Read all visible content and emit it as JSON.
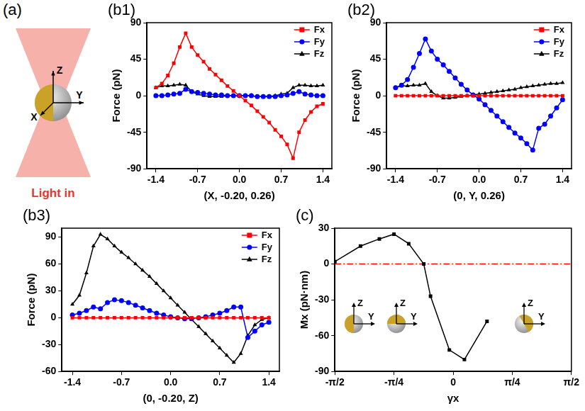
{
  "panel_a": {
    "panel": "(a)",
    "axes": [
      "X",
      "Y",
      "Z"
    ],
    "caption": "Light in"
  },
  "chart_data": [
    {
      "panel": "(b1)",
      "type": "line",
      "x_label": "(X, -0.20, 0.26)",
      "y_label": "Force (pN)",
      "x": [
        -1.4,
        -1.3,
        -1.2,
        -1.1,
        -1.0,
        -0.9,
        -0.8,
        -0.7,
        -0.6,
        -0.5,
        -0.4,
        -0.3,
        -0.2,
        -0.1,
        0,
        0.1,
        0.2,
        0.3,
        0.4,
        0.5,
        0.6,
        0.7,
        0.8,
        0.9,
        1.0,
        1.1,
        1.2,
        1.3,
        1.4
      ],
      "xlim": [
        -1.55,
        1.55
      ],
      "xticks": [
        -1.4,
        -0.7,
        {
          "value": 0,
          "label": "0.0"
        },
        0.7,
        1.4
      ],
      "ylim": [
        -90,
        90
      ],
      "yticks": [
        -90,
        -45,
        0,
        45,
        90
      ],
      "grid": false,
      "legend": "top right",
      "series": [
        {
          "name": "Fx",
          "color": "#ff0000",
          "marker": "square",
          "line_style": "solid",
          "values": [
            10,
            15,
            25,
            40,
            60,
            77,
            60,
            50,
            42,
            33,
            26,
            19,
            12,
            6,
            0,
            -6,
            -12,
            -19,
            -26,
            -33,
            -42,
            -50,
            -60,
            -77,
            -45,
            -30,
            -20,
            -13,
            -10
          ]
        },
        {
          "name": "Fy",
          "color": "#0000ff",
          "marker": "circle",
          "line_style": "solid",
          "values": [
            0,
            0,
            1,
            2,
            3,
            8,
            5,
            4,
            3,
            2,
            1,
            1,
            0,
            0,
            0,
            0,
            0,
            -1,
            -1,
            -1,
            -1,
            0,
            1,
            3,
            5,
            2,
            1,
            0,
            0
          ]
        },
        {
          "name": "Fz",
          "color": "#000000",
          "marker": "triangle",
          "line_style": "solid",
          "values": [
            10,
            12,
            12,
            13,
            14,
            13,
            5,
            2,
            0,
            -1,
            -1,
            -1,
            0,
            0,
            0,
            0,
            0,
            -1,
            -1,
            -1,
            0,
            2,
            3,
            10,
            13,
            13,
            12,
            12,
            13
          ]
        }
      ]
    },
    {
      "panel": "(b2)",
      "type": "line",
      "x_label": "(0, Y, 0.26)",
      "y_label": "Force (pN)",
      "x": [
        -1.4,
        -1.3,
        -1.2,
        -1.1,
        -1.0,
        -0.9,
        -0.8,
        -0.7,
        -0.6,
        -0.5,
        -0.4,
        -0.3,
        -0.2,
        -0.1,
        0,
        0.1,
        0.2,
        0.3,
        0.4,
        0.5,
        0.6,
        0.7,
        0.8,
        0.9,
        1.0,
        1.1,
        1.2,
        1.3,
        1.4
      ],
      "xlim": [
        -1.55,
        1.55
      ],
      "xticks": [
        -1.4,
        -0.7,
        {
          "value": 0,
          "label": "0.0"
        },
        0.7,
        1.4
      ],
      "ylim": [
        -90,
        90
      ],
      "yticks": [
        -90,
        -45,
        0,
        45,
        90
      ],
      "grid": false,
      "legend": "top right",
      "series": [
        {
          "name": "Fx",
          "color": "#ff0000",
          "marker": "square",
          "line_style": "solid",
          "values": [
            0,
            0,
            0,
            0,
            0,
            0,
            0,
            0,
            0,
            0,
            0,
            0,
            0,
            0,
            0,
            0,
            0,
            0,
            0,
            0,
            0,
            0,
            0,
            0,
            0,
            0,
            0,
            0,
            0
          ]
        },
        {
          "name": "Fy",
          "color": "#0000ff",
          "marker": "circle",
          "line_style": "solid",
          "values": [
            10,
            13,
            20,
            35,
            52,
            70,
            55,
            45,
            38,
            30,
            22,
            14,
            7,
            1,
            -4,
            -11,
            -18,
            -25,
            -32,
            -39,
            -46,
            -52,
            -59,
            -67,
            -40,
            -35,
            -25,
            -15,
            -5
          ]
        },
        {
          "name": "Fz",
          "color": "#000000",
          "marker": "triangle",
          "line_style": "solid",
          "values": [
            10,
            12,
            12,
            13,
            13,
            15,
            5,
            0,
            -3,
            -3,
            -2,
            -1,
            0,
            1,
            2,
            3,
            4,
            5,
            6,
            7,
            8,
            10,
            11,
            12,
            13,
            14,
            15,
            15,
            16
          ]
        }
      ]
    },
    {
      "panel": "(b3)",
      "type": "line",
      "x_label": "(0, -0.20, Z)",
      "y_label": "Force (pN)",
      "x": [
        -1.4,
        -1.3,
        -1.2,
        -1.1,
        -1.0,
        -0.9,
        -0.8,
        -0.7,
        -0.6,
        -0.5,
        -0.4,
        -0.3,
        -0.2,
        -0.1,
        0,
        0.1,
        0.2,
        0.3,
        0.4,
        0.5,
        0.6,
        0.7,
        0.8,
        0.9,
        1.0,
        1.1,
        1.2,
        1.3,
        1.4
      ],
      "xlim": [
        -1.55,
        1.55
      ],
      "xticks": [
        -1.4,
        -0.7,
        {
          "value": 0,
          "label": "0.0"
        },
        0.7,
        1.4
      ],
      "ylim": [
        -60,
        100
      ],
      "yticks": [
        -60,
        -30,
        0,
        30,
        60,
        90
      ],
      "grid": false,
      "legend": "top right",
      "series": [
        {
          "name": "Fx",
          "color": "#ff0000",
          "marker": "square",
          "line_style": "solid",
          "values": [
            0,
            0,
            0,
            0,
            0,
            0,
            0,
            0,
            0,
            0,
            0,
            0,
            0,
            0,
            0,
            0,
            0,
            0,
            0,
            0,
            0,
            0,
            0,
            0,
            0,
            0,
            0,
            0,
            0
          ]
        },
        {
          "name": "Fy",
          "color": "#0000ff",
          "marker": "circle",
          "line_style": "solid",
          "values": [
            3,
            5,
            8,
            12,
            10,
            17,
            20,
            19,
            17,
            14,
            11,
            8,
            5,
            3,
            1,
            0,
            -1,
            -1,
            0,
            1,
            3,
            5,
            8,
            12,
            12,
            -22,
            -15,
            -8,
            -5
          ]
        },
        {
          "name": "Fz",
          "color": "#000000",
          "marker": "triangle",
          "line_style": "solid",
          "values": [
            15,
            25,
            50,
            80,
            93,
            88,
            80,
            73,
            67,
            60,
            53,
            46,
            38,
            30,
            22,
            14,
            6,
            -2,
            -10,
            -18,
            -26,
            -34,
            -42,
            -50,
            -40,
            -20,
            -8,
            -2,
            0
          ]
        }
      ]
    },
    {
      "panel": "(c)",
      "type": "line",
      "x_label": "γx",
      "y_label": "Mx (pN·nm)",
      "x": [
        -1.5708,
        -1.23,
        -0.98,
        -0.7854,
        -0.59,
        -0.39,
        -0.3,
        -0.05,
        0.15,
        0.45
      ],
      "xlim": [
        -1.5708,
        1.5708
      ],
      "xticks": [
        {
          "value": -1.5708,
          "label": "-π/2"
        },
        {
          "value": -0.7854,
          "label": "-π/4"
        },
        0,
        {
          "value": 0.7854,
          "label": "π/4"
        },
        {
          "value": 1.5708,
          "label": "π/2"
        }
      ],
      "ylim": [
        -90,
        30
      ],
      "yticks": [
        -90,
        -60,
        -30,
        0,
        30
      ],
      "grid": false,
      "series": [
        {
          "color": "#000000",
          "marker": "square",
          "line_style": "solid",
          "values": [
            2,
            15,
            21,
            25,
            17,
            0,
            -27,
            -72,
            -80,
            -48
          ]
        },
        {
          "color": "#ff0000",
          "marker": "none",
          "line_style": "dashdot",
          "x": [
            -1.5708,
            1.5708
          ],
          "values": [
            0,
            0
          ]
        }
      ]
    }
  ],
  "panel_c_insets": [
    {
      "labels": [
        "Z",
        "Y"
      ]
    },
    {
      "labels": [
        "Z",
        "Y"
      ]
    },
    {
      "labels": [
        "Z",
        "Y"
      ]
    }
  ]
}
